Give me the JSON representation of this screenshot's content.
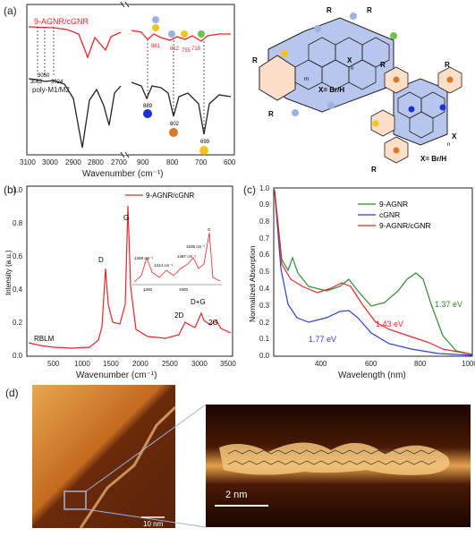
{
  "panel_a": {
    "label": "(a)",
    "top_series": "9-AGNR/cGNR",
    "bottom_series": "poly-M1/M2",
    "xlabel": "Wavenumber (cm⁻¹)",
    "xticks": [
      "3100",
      "3000",
      "2900",
      "2800",
      "2700",
      "900",
      "800",
      "700",
      "600"
    ],
    "top_peaks": [
      "861",
      "812",
      "755",
      "718"
    ],
    "bottom_peaks_left": [
      "3062",
      "3050",
      "3024"
    ],
    "bottom_peaks_right": [
      "889",
      "802",
      "699"
    ],
    "struct1_label": "X= Br/H",
    "struct2_label": "X= Br/H",
    "r": "R",
    "x": "X",
    "n": "n",
    "m": "m",
    "colors": {
      "top": "#e8262a",
      "bottom": "#222222",
      "blue": "#1e2fd6",
      "orange": "#d9782d",
      "yellow": "#f4c21a",
      "green": "#6cc24a",
      "light_blue": "#9cb2e0"
    }
  },
  "panel_b": {
    "label": "(b)",
    "legend": "9-AGNR/cGNR",
    "ylabel": "Intensity (a.u.)",
    "xlabel": "Wavenumber (cm⁻¹)",
    "yticks": [
      "0.0",
      "0.2",
      "0.4",
      "0.6",
      "0.8",
      "1.0"
    ],
    "xticks": [
      "500",
      "1000",
      "1500",
      "2000",
      "2500",
      "3000",
      "3500"
    ],
    "peaks": [
      "RBLM",
      "D",
      "G",
      "2D",
      "D+G",
      "2G"
    ],
    "inset_peaks": [
      "1269 cm⁻¹",
      "1414 cm⁻¹",
      "1487 cm⁻¹",
      "1536 cm⁻¹",
      "G"
    ],
    "inset_xticks": [
      "1250",
      "1500"
    ],
    "color": "#e8262a"
  },
  "panel_c": {
    "label": "(c)",
    "ylabel": "Normalized Absorption",
    "xlabel": "Wavelength (nm)",
    "yticks": [
      "0.0",
      "0.1",
      "0.2",
      "0.3",
      "0.4",
      "0.5",
      "0.6",
      "0.7",
      "0.8",
      "0.9",
      "1.0"
    ],
    "xticks": [
      "400",
      "600",
      "800",
      "1000"
    ],
    "legend": [
      "9-AGNR",
      "cGNR",
      "9-AGNR/cGNR"
    ],
    "annotations": [
      "1.37 eV",
      "1.43 eV",
      "1.77 eV"
    ],
    "colors": {
      "agnr": "#2e8b2e",
      "cgnr": "#2b3fe0",
      "hybrid": "#e8262a"
    }
  },
  "panel_d": {
    "label": "(d)",
    "scale_left": "10 nm",
    "scale_right": "2 nm"
  },
  "chart_data": [
    {
      "type": "line",
      "title": "",
      "xlabel": "Wavenumber (cm⁻¹)",
      "ylabel": "",
      "xlim": [
        3100,
        600
      ],
      "series": [
        {
          "name": "9-AGNR/cGNR",
          "x": [
            3100,
            3050,
            3000,
            2950,
            2920,
            2890,
            2860,
            2830,
            2800,
            2750,
            2700
          ],
          "y": [
            0.92,
            0.92,
            0.91,
            0.88,
            0.82,
            0.87,
            0.81,
            0.88,
            0.9,
            0.91,
            0.91
          ]
        },
        {
          "name": "poly-M1/M2",
          "x": [
            3100,
            3062,
            3050,
            3024,
            2960,
            2925,
            2890,
            2855,
            2820,
            2780,
            2700
          ],
          "y": [
            0.55,
            0.53,
            0.52,
            0.53,
            0.45,
            0.0,
            0.4,
            0.2,
            0.5,
            0.55,
            0.56
          ]
        }
      ]
    },
    {
      "type": "line",
      "title": "",
      "xlabel": "Wavenumber (cm⁻¹)",
      "ylabel": "Intensity (a.u.)",
      "xlim": [
        0,
        3500
      ],
      "ylim": [
        0,
        1.0
      ],
      "series": [
        {
          "name": "9-AGNR/cGNR",
          "x": [
            250,
            400,
            800,
            1100,
            1250,
            1310,
            1350,
            1450,
            1550,
            1600,
            1650,
            1800,
            2200,
            2550,
            2650,
            2750,
            2900,
            3000,
            3150,
            3250,
            3500
          ],
          "y": [
            0.1,
            0.08,
            0.06,
            0.07,
            0.2,
            0.52,
            0.3,
            0.25,
            0.42,
            0.94,
            0.3,
            0.11,
            0.09,
            0.15,
            0.19,
            0.15,
            0.24,
            0.15,
            0.13,
            0.16,
            0.12
          ]
        }
      ]
    },
    {
      "type": "line",
      "title": "",
      "xlabel": "Wavelength (nm)",
      "ylabel": "Normalized Absorption",
      "xlim": [
        300,
        1100
      ],
      "ylim": [
        0.0,
        1.0
      ],
      "series": [
        {
          "name": "9-AGNR",
          "x": [
            300,
            320,
            340,
            355,
            380,
            450,
            530,
            580,
            640,
            720,
            790,
            830,
            900,
            1000,
            1100
          ],
          "y": [
            1.0,
            0.6,
            0.55,
            0.6,
            0.45,
            0.38,
            0.44,
            0.33,
            0.27,
            0.36,
            0.49,
            0.42,
            0.16,
            0.03,
            0.01
          ]
        },
        {
          "name": "cGNR",
          "x": [
            300,
            330,
            360,
            400,
            460,
            520,
            560,
            620,
            700,
            800,
            900,
            1000,
            1100
          ],
          "y": [
            0.95,
            0.45,
            0.25,
            0.2,
            0.23,
            0.28,
            0.27,
            0.18,
            0.1,
            0.05,
            0.02,
            0.01,
            0.01
          ]
        },
        {
          "name": "9-AGNR/cGNR",
          "x": [
            300,
            330,
            360,
            400,
            460,
            530,
            580,
            640,
            700,
            760,
            800,
            850,
            900,
            1000,
            1100
          ],
          "y": [
            0.95,
            0.55,
            0.45,
            0.4,
            0.37,
            0.42,
            0.34,
            0.22,
            0.16,
            0.13,
            0.1,
            0.08,
            0.05,
            0.02,
            0.01
          ]
        }
      ]
    }
  ]
}
